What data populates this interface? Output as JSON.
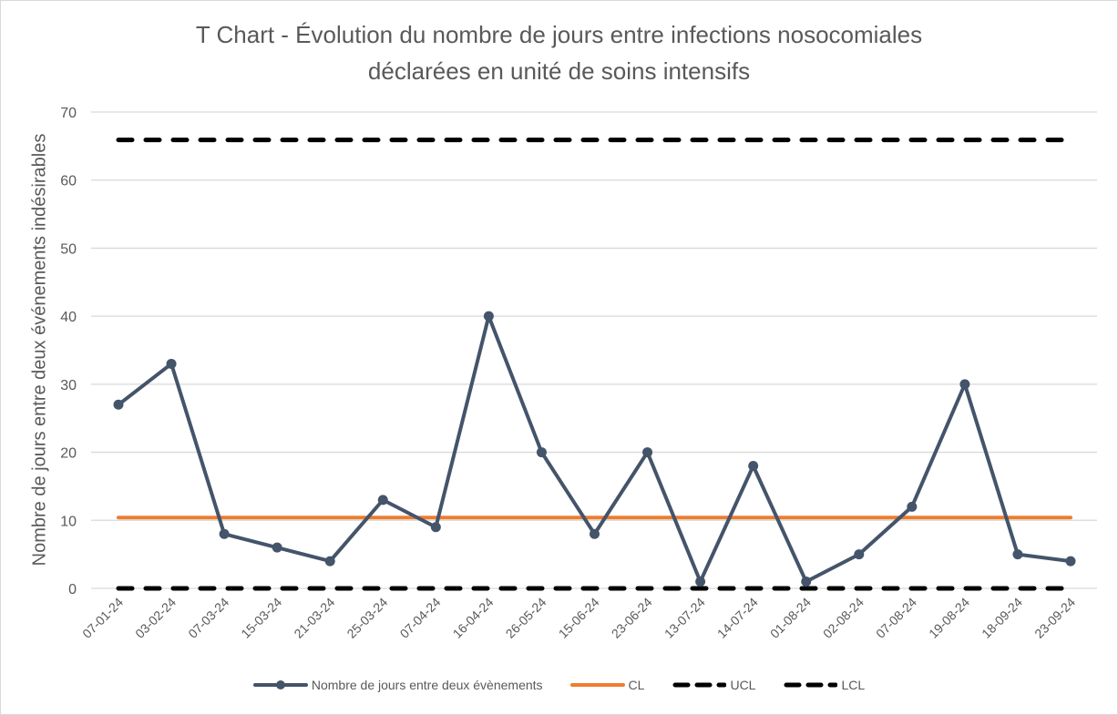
{
  "chart_data": {
    "type": "line",
    "title": "T Chart - Évolution du nombre de jours entre infections nosocomiales déclarées en unité de soins intensifs",
    "title_lines": [
      "T Chart - Évolution du nombre de jours entre infections nosocomiales",
      "déclarées en unité de soins intensifs"
    ],
    "xlabel": "",
    "ylabel": "Nombre de jours entre deux événements indésirables",
    "ylim": [
      0,
      70
    ],
    "yticks": [
      0,
      10,
      20,
      30,
      40,
      50,
      60,
      70
    ],
    "grid": true,
    "legend_position": "bottom",
    "categories": [
      "07-01-24",
      "03-02-24",
      "07-03-24",
      "15-03-24",
      "21-03-24",
      "25-03-24",
      "07-04-24",
      "16-04-24",
      "26-05-24",
      "15-06-24",
      "23-06-24",
      "13-07-24",
      "14-07-24",
      "01-08-24",
      "02-08-24",
      "07-08-24",
      "19-08-24",
      "18-09-24",
      "23-09-24"
    ],
    "series": [
      {
        "name": "Nombre de jours entre deux évènements",
        "style": "line-markers",
        "color": "#44546A",
        "values": [
          27,
          33,
          8,
          6,
          4,
          13,
          9,
          40,
          20,
          8,
          20,
          1,
          18,
          1,
          5,
          12,
          30,
          5,
          4
        ]
      },
      {
        "name": "CL",
        "style": "solid",
        "color": "#ED7D31",
        "values": [
          10.4,
          10.4,
          10.4,
          10.4,
          10.4,
          10.4,
          10.4,
          10.4,
          10.4,
          10.4,
          10.4,
          10.4,
          10.4,
          10.4,
          10.4,
          10.4,
          10.4,
          10.4,
          10.4
        ]
      },
      {
        "name": "UCL",
        "style": "dashed",
        "color": "#000000",
        "values": [
          65.9,
          65.9,
          65.9,
          65.9,
          65.9,
          65.9,
          65.9,
          65.9,
          65.9,
          65.9,
          65.9,
          65.9,
          65.9,
          65.9,
          65.9,
          65.9,
          65.9,
          65.9,
          65.9
        ]
      },
      {
        "name": "LCL",
        "style": "dashed",
        "color": "#000000",
        "values": [
          0,
          0,
          0,
          0,
          0,
          0,
          0,
          0,
          0,
          0,
          0,
          0,
          0,
          0,
          0,
          0,
          0,
          0,
          0
        ]
      }
    ]
  }
}
